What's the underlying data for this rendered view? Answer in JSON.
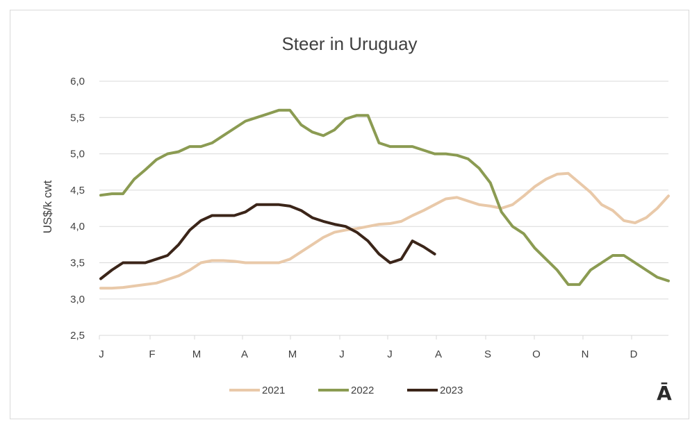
{
  "chart_data": {
    "type": "line",
    "title": "Steer in Uruguay",
    "xlabel": "",
    "ylabel": "US$/k cwt",
    "ylim": [
      2.5,
      6.0
    ],
    "yticks": [
      "2,5",
      "3,0",
      "3,5",
      "4,0",
      "4,5",
      "5,0",
      "5,5",
      "6,0"
    ],
    "xticks": [
      "J",
      "F",
      "M",
      "A",
      "M",
      "J",
      "J",
      "A",
      "S",
      "O",
      "N",
      "D"
    ],
    "x_resolution": "weekly",
    "grid": true,
    "legend_position": "bottom",
    "series": [
      {
        "name": "2021",
        "color": "#e9c9a9",
        "values": [
          3.15,
          3.15,
          3.16,
          3.18,
          3.2,
          3.22,
          3.27,
          3.32,
          3.4,
          3.5,
          3.53,
          3.53,
          3.52,
          3.5,
          3.5,
          3.5,
          3.5,
          3.55,
          3.65,
          3.75,
          3.85,
          3.92,
          3.95,
          3.97,
          4.0,
          4.03,
          4.04,
          4.07,
          4.15,
          4.22,
          4.3,
          4.38,
          4.4,
          4.35,
          4.3,
          4.28,
          4.25,
          4.3,
          4.42,
          4.55,
          4.65,
          4.72,
          4.73,
          4.6,
          4.47,
          4.3,
          4.22,
          4.08,
          4.05,
          4.12,
          4.25,
          4.42
        ]
      },
      {
        "name": "2022",
        "color": "#8b9b52",
        "values": [
          4.43,
          4.45,
          4.45,
          4.65,
          4.78,
          4.92,
          5.0,
          5.03,
          5.1,
          5.1,
          5.15,
          5.25,
          5.35,
          5.45,
          5.5,
          5.55,
          5.6,
          5.6,
          5.4,
          5.3,
          5.25,
          5.33,
          5.48,
          5.53,
          5.53,
          5.15,
          5.1,
          5.1,
          5.1,
          5.05,
          5.0,
          5.0,
          4.98,
          4.93,
          4.8,
          4.6,
          4.2,
          4.0,
          3.9,
          3.7,
          3.55,
          3.4,
          3.2,
          3.2,
          3.4,
          3.5,
          3.6,
          3.6,
          3.5,
          3.4,
          3.3,
          3.25
        ]
      },
      {
        "name": "2023",
        "color": "#3b2519",
        "values": [
          3.28,
          3.4,
          3.5,
          3.5,
          3.5,
          3.55,
          3.6,
          3.75,
          3.95,
          4.08,
          4.15,
          4.15,
          4.15,
          4.2,
          4.3,
          4.3,
          4.3,
          4.28,
          4.22,
          4.12,
          4.07,
          4.03,
          4.0,
          3.92,
          3.8,
          3.62,
          3.5,
          3.55,
          3.8,
          3.72,
          3.62
        ]
      }
    ]
  },
  "logo_text": "Ā"
}
